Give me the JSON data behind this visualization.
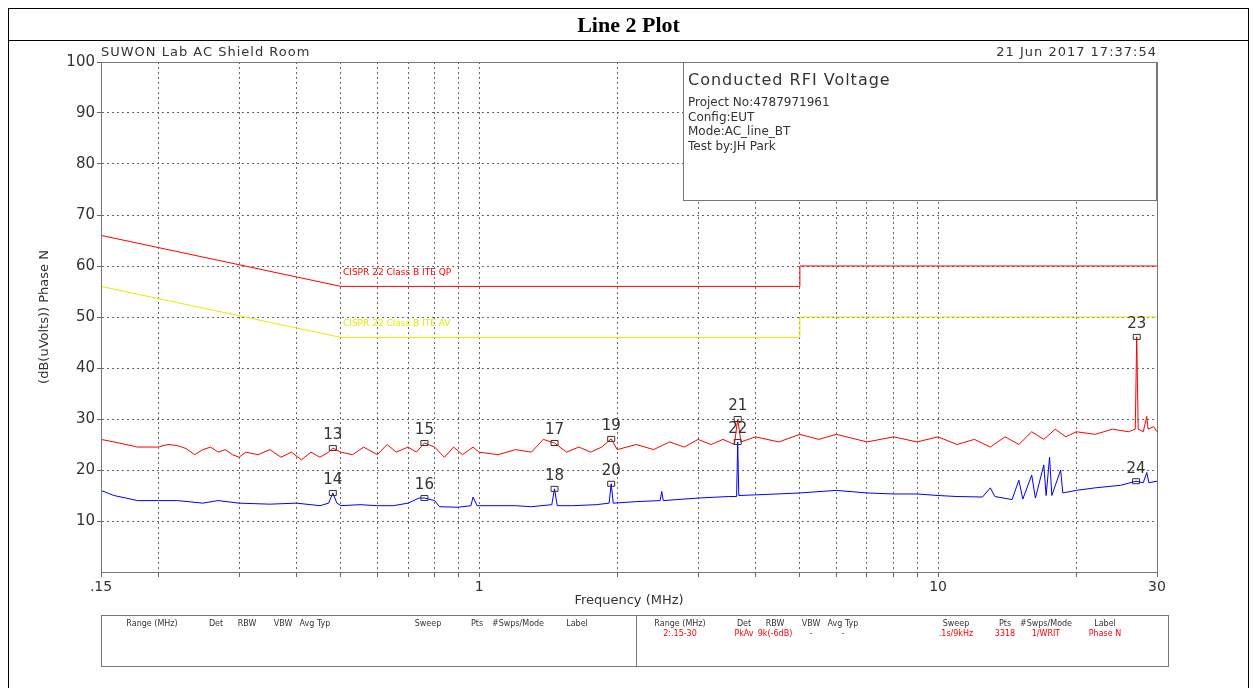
{
  "chart_data": {
    "type": "line",
    "title": "Line 2 Plot",
    "xlabel": "Frequency (MHz)",
    "ylabel": "(dB(uVolts)) Phase N",
    "log": "x",
    "grid": true,
    "legend": false,
    "xlim": [
      0.15,
      30
    ],
    "ylim": [
      0,
      100
    ],
    "xticks": [
      {
        "value": 0.15,
        "label": ".15"
      },
      {
        "value": 0.2,
        "label": null
      },
      {
        "value": 0.3,
        "label": null
      },
      {
        "value": 0.4,
        "label": null
      },
      {
        "value": 0.5,
        "label": null
      },
      {
        "value": 0.6,
        "label": null
      },
      {
        "value": 0.7,
        "label": null
      },
      {
        "value": 0.8,
        "label": null
      },
      {
        "value": 0.9,
        "label": null
      },
      1,
      {
        "value": 2,
        "label": null
      },
      {
        "value": 3,
        "label": null
      },
      {
        "value": 4,
        "label": null
      },
      {
        "value": 5,
        "label": null
      },
      {
        "value": 6,
        "label": null
      },
      {
        "value": 7,
        "label": null
      },
      {
        "value": 8,
        "label": null
      },
      {
        "value": 9,
        "label": null
      },
      10,
      {
        "value": 20,
        "label": null
      },
      30
    ],
    "yticks": [
      10,
      20,
      30,
      40,
      50,
      60,
      70,
      80,
      90,
      100
    ],
    "series": [
      {
        "name": "CISPR 22 Class B ITE QP",
        "color": "#ff0000",
        "x": [
          0.15,
          0.5,
          5,
          5,
          30
        ],
        "values": [
          66,
          56,
          56,
          60,
          60
        ]
      },
      {
        "name": "CISPR 22 Class B ITE AV",
        "color": "#e8e800",
        "x": [
          0.15,
          0.5,
          5,
          5,
          30
        ],
        "values": [
          56,
          46,
          46,
          50,
          50
        ]
      },
      {
        "color": "#ff0000",
        "x": [
          0.15,
          0.16,
          0.17,
          0.18,
          0.19,
          0.2,
          0.21,
          0.22,
          0.23,
          0.24,
          0.25,
          0.26,
          0.27,
          0.28,
          0.29,
          0.3,
          0.31,
          0.33,
          0.35,
          0.37,
          0.39,
          0.41,
          0.43,
          0.45,
          0.47,
          0.48,
          0.5,
          0.53,
          0.56,
          0.6,
          0.63,
          0.66,
          0.7,
          0.73,
          0.76,
          0.8,
          0.84,
          0.88,
          0.92,
          0.97,
          1.0,
          1.1,
          1.2,
          1.3,
          1.38,
          1.46,
          1.55,
          1.65,
          1.75,
          1.85,
          1.94,
          2.0,
          2.2,
          2.4,
          2.6,
          2.8,
          3.0,
          3.2,
          3.4,
          3.6,
          3.66,
          3.72,
          4.0,
          4.5,
          5.0,
          5.5,
          6.0,
          7,
          8,
          9,
          10,
          11,
          12,
          13,
          14,
          15,
          16,
          17,
          18,
          19,
          20,
          22,
          24,
          26,
          26.9,
          27.1,
          27.3,
          28,
          28.5,
          28.7,
          29.5,
          30
        ],
        "values": [
          26,
          25.5,
          25,
          24.5,
          24.5,
          24.5,
          25,
          24.8,
          24.2,
          23,
          24,
          24.5,
          23.5,
          24,
          23,
          22.5,
          23.5,
          23,
          24,
          22.5,
          23.5,
          22,
          23.5,
          22.5,
          23.5,
          24.3,
          23.5,
          23,
          24.5,
          23,
          25,
          23.5,
          24.5,
          23.5,
          25.3,
          24.5,
          22.5,
          24.5,
          23,
          24.5,
          23.5,
          23,
          24,
          23.5,
          26,
          25.3,
          23.5,
          24.5,
          23.5,
          24.5,
          26.1,
          24,
          25,
          24,
          25.5,
          24.5,
          26,
          25,
          26,
          25,
          30,
          25.5,
          26.5,
          25.5,
          27,
          26,
          27,
          25.5,
          26.5,
          25.5,
          26.5,
          25,
          26,
          24.5,
          26.5,
          25,
          27.5,
          26,
          28,
          26.5,
          27.5,
          27,
          28,
          27.5,
          28,
          46.1,
          28,
          27.5,
          30.5,
          28,
          28.5,
          27.5
        ]
      },
      {
        "color": "#0000ff",
        "x": [
          0.15,
          0.16,
          0.17,
          0.18,
          0.2,
          0.22,
          0.25,
          0.27,
          0.3,
          0.35,
          0.4,
          0.45,
          0.47,
          0.48,
          0.49,
          0.5,
          0.55,
          0.6,
          0.65,
          0.7,
          0.74,
          0.76,
          0.8,
          0.82,
          0.9,
          0.96,
          0.97,
          0.99,
          1.1,
          1.2,
          1.3,
          1.44,
          1.46,
          1.48,
          1.6,
          1.8,
          1.92,
          1.94,
          1.96,
          2.2,
          2.48,
          2.5,
          2.52,
          3.0,
          3.5,
          3.64,
          3.66,
          3.68,
          4.2,
          5,
          6,
          7,
          8,
          9,
          10,
          11,
          12.5,
          13,
          13.3,
          14.5,
          15,
          15.3,
          16,
          16.3,
          17,
          17.2,
          17.5,
          17.7,
          18.5,
          18.7,
          20,
          22,
          25,
          27,
          28,
          28.5,
          28.8,
          30
        ],
        "values": [
          16,
          15,
          14.5,
          14,
          14,
          14,
          13.5,
          14,
          13.5,
          13.3,
          13.5,
          13,
          13.5,
          15.5,
          13.5,
          13,
          13.2,
          13,
          13,
          13.5,
          14.5,
          14.5,
          14,
          12.8,
          12.7,
          13,
          14.7,
          13,
          13,
          13,
          12.8,
          13.2,
          16.3,
          13,
          13,
          13.2,
          13.5,
          17.3,
          13.5,
          13.8,
          14,
          15.8,
          14,
          14.5,
          14.8,
          14.8,
          25.5,
          15,
          15.2,
          15.5,
          16,
          15.5,
          15.3,
          15.3,
          15,
          14.8,
          14.7,
          16.5,
          14.8,
          14.2,
          18,
          14.3,
          19,
          14.5,
          21,
          15,
          22.5,
          15,
          20,
          15.5,
          16,
          16.5,
          17,
          17.8,
          17.5,
          19.5,
          17.5,
          17.8
        ]
      }
    ],
    "annotations": [
      "SUWON Lab AC Shield Room",
      "21 Jun 2017   17:37:54",
      "Conducted RFI Voltage",
      "Project No:4787971961",
      "Config:EUT",
      "Mode:AC_line_BT",
      "Test by:JH Park",
      {
        "text": "13",
        "x": 0.48,
        "y": 24.3
      },
      {
        "text": "14",
        "x": 0.48,
        "y": 15.5
      },
      {
        "text": "15",
        "x": 0.76,
        "y": 25.3
      },
      {
        "text": "16",
        "x": 0.76,
        "y": 14.5
      },
      {
        "text": "17",
        "x": 1.46,
        "y": 25.3
      },
      {
        "text": "18",
        "x": 1.46,
        "y": 16.3
      },
      {
        "text": "19",
        "x": 1.94,
        "y": 26.1
      },
      {
        "text": "20",
        "x": 1.94,
        "y": 17.3
      },
      {
        "text": "21",
        "x": 3.66,
        "y": 30
      },
      {
        "text": "22",
        "x": 3.66,
        "y": 25.5
      },
      {
        "text": "23",
        "x": 27.1,
        "y": 46.1
      },
      {
        "text": "24",
        "x": 27,
        "y": 17.8
      },
      "Range (MHz)",
      "Det",
      "RBW",
      "VBW",
      "Avg Typ",
      "Sweep",
      "Pts",
      "#Swps/Mode",
      "Label",
      "Range (MHz)",
      "Det",
      "RBW",
      "VBW",
      "Avg Typ",
      "Sweep",
      "Pts",
      "#Swps/Mode",
      "Label",
      "2:.15-30",
      "PkAv",
      "9k(-6dB)",
      "-",
      "-",
      ".1s/9kHz",
      "3318",
      "1/WRIT",
      "Phase N"
    ]
  }
}
